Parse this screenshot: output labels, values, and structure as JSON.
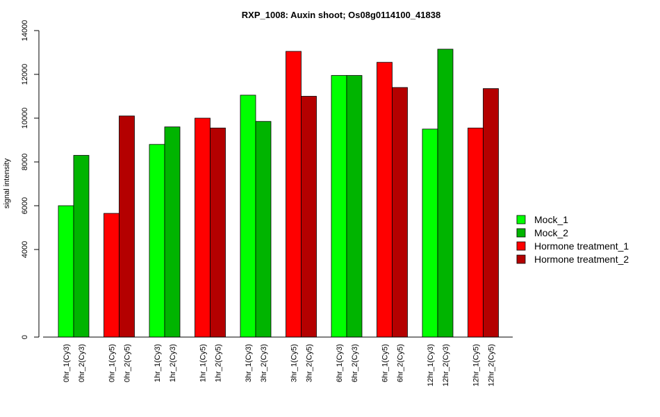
{
  "chart_data": {
    "type": "bar",
    "title": "RXP_1008: Auxin shoot; Os08g0114100_41838",
    "xlabel": "",
    "ylabel": "signal intensity",
    "ylim": [
      0,
      14000
    ],
    "yticks": [
      0,
      4000,
      6000,
      8000,
      10000,
      12000,
      14000
    ],
    "grid": false,
    "legend_position": "right",
    "bars": [
      {
        "label": "0hr_1(Cy3)",
        "value": 6000,
        "series": "Mock_1"
      },
      {
        "label": "0hr_2(Cy3)",
        "value": 8300,
        "series": "Mock_2"
      },
      {
        "label": "0hr_1(Cy5)",
        "value": 5650,
        "series": "Hormone treatment_1"
      },
      {
        "label": "0hr_2(Cy5)",
        "value": 10100,
        "series": "Hormone treatment_2"
      },
      {
        "label": "1hr_1(Cy3)",
        "value": 8800,
        "series": "Mock_1"
      },
      {
        "label": "1hr_2(Cy3)",
        "value": 9600,
        "series": "Mock_2"
      },
      {
        "label": "1hr_1(Cy5)",
        "value": 10000,
        "series": "Hormone treatment_1"
      },
      {
        "label": "1hr_2(Cy5)",
        "value": 9550,
        "series": "Hormone treatment_2"
      },
      {
        "label": "3hr_1(Cy3)",
        "value": 11050,
        "series": "Mock_1"
      },
      {
        "label": "3hr_2(Cy3)",
        "value": 9850,
        "series": "Mock_2"
      },
      {
        "label": "3hr_1(Cy5)",
        "value": 13050,
        "series": "Hormone treatment_1"
      },
      {
        "label": "3hr_2(Cy5)",
        "value": 11000,
        "series": "Hormone treatment_2"
      },
      {
        "label": "6hr_1(Cy3)",
        "value": 11950,
        "series": "Mock_1"
      },
      {
        "label": "6hr_2(Cy3)",
        "value": 11950,
        "series": "Mock_2"
      },
      {
        "label": "6hr_1(Cy5)",
        "value": 12550,
        "series": "Hormone treatment_1"
      },
      {
        "label": "6hr_2(Cy5)",
        "value": 11400,
        "series": "Hormone treatment_2"
      },
      {
        "label": "12hr_1(Cy3)",
        "value": 9500,
        "series": "Mock_1"
      },
      {
        "label": "12hr_2(Cy3)",
        "value": 13150,
        "series": "Mock_2"
      },
      {
        "label": "12hr_1(Cy5)",
        "value": 9550,
        "series": "Hormone treatment_1"
      },
      {
        "label": "12hr_2(Cy5)",
        "value": 11350,
        "series": "Hormone treatment_2"
      }
    ],
    "legend": [
      {
        "name": "Mock_1",
        "color": "#00ff00"
      },
      {
        "name": "Mock_2",
        "color": "#00b400"
      },
      {
        "name": "Hormone treatment_1",
        "color": "#ff0000"
      },
      {
        "name": "Hormone treatment_2",
        "color": "#b40000"
      }
    ]
  }
}
